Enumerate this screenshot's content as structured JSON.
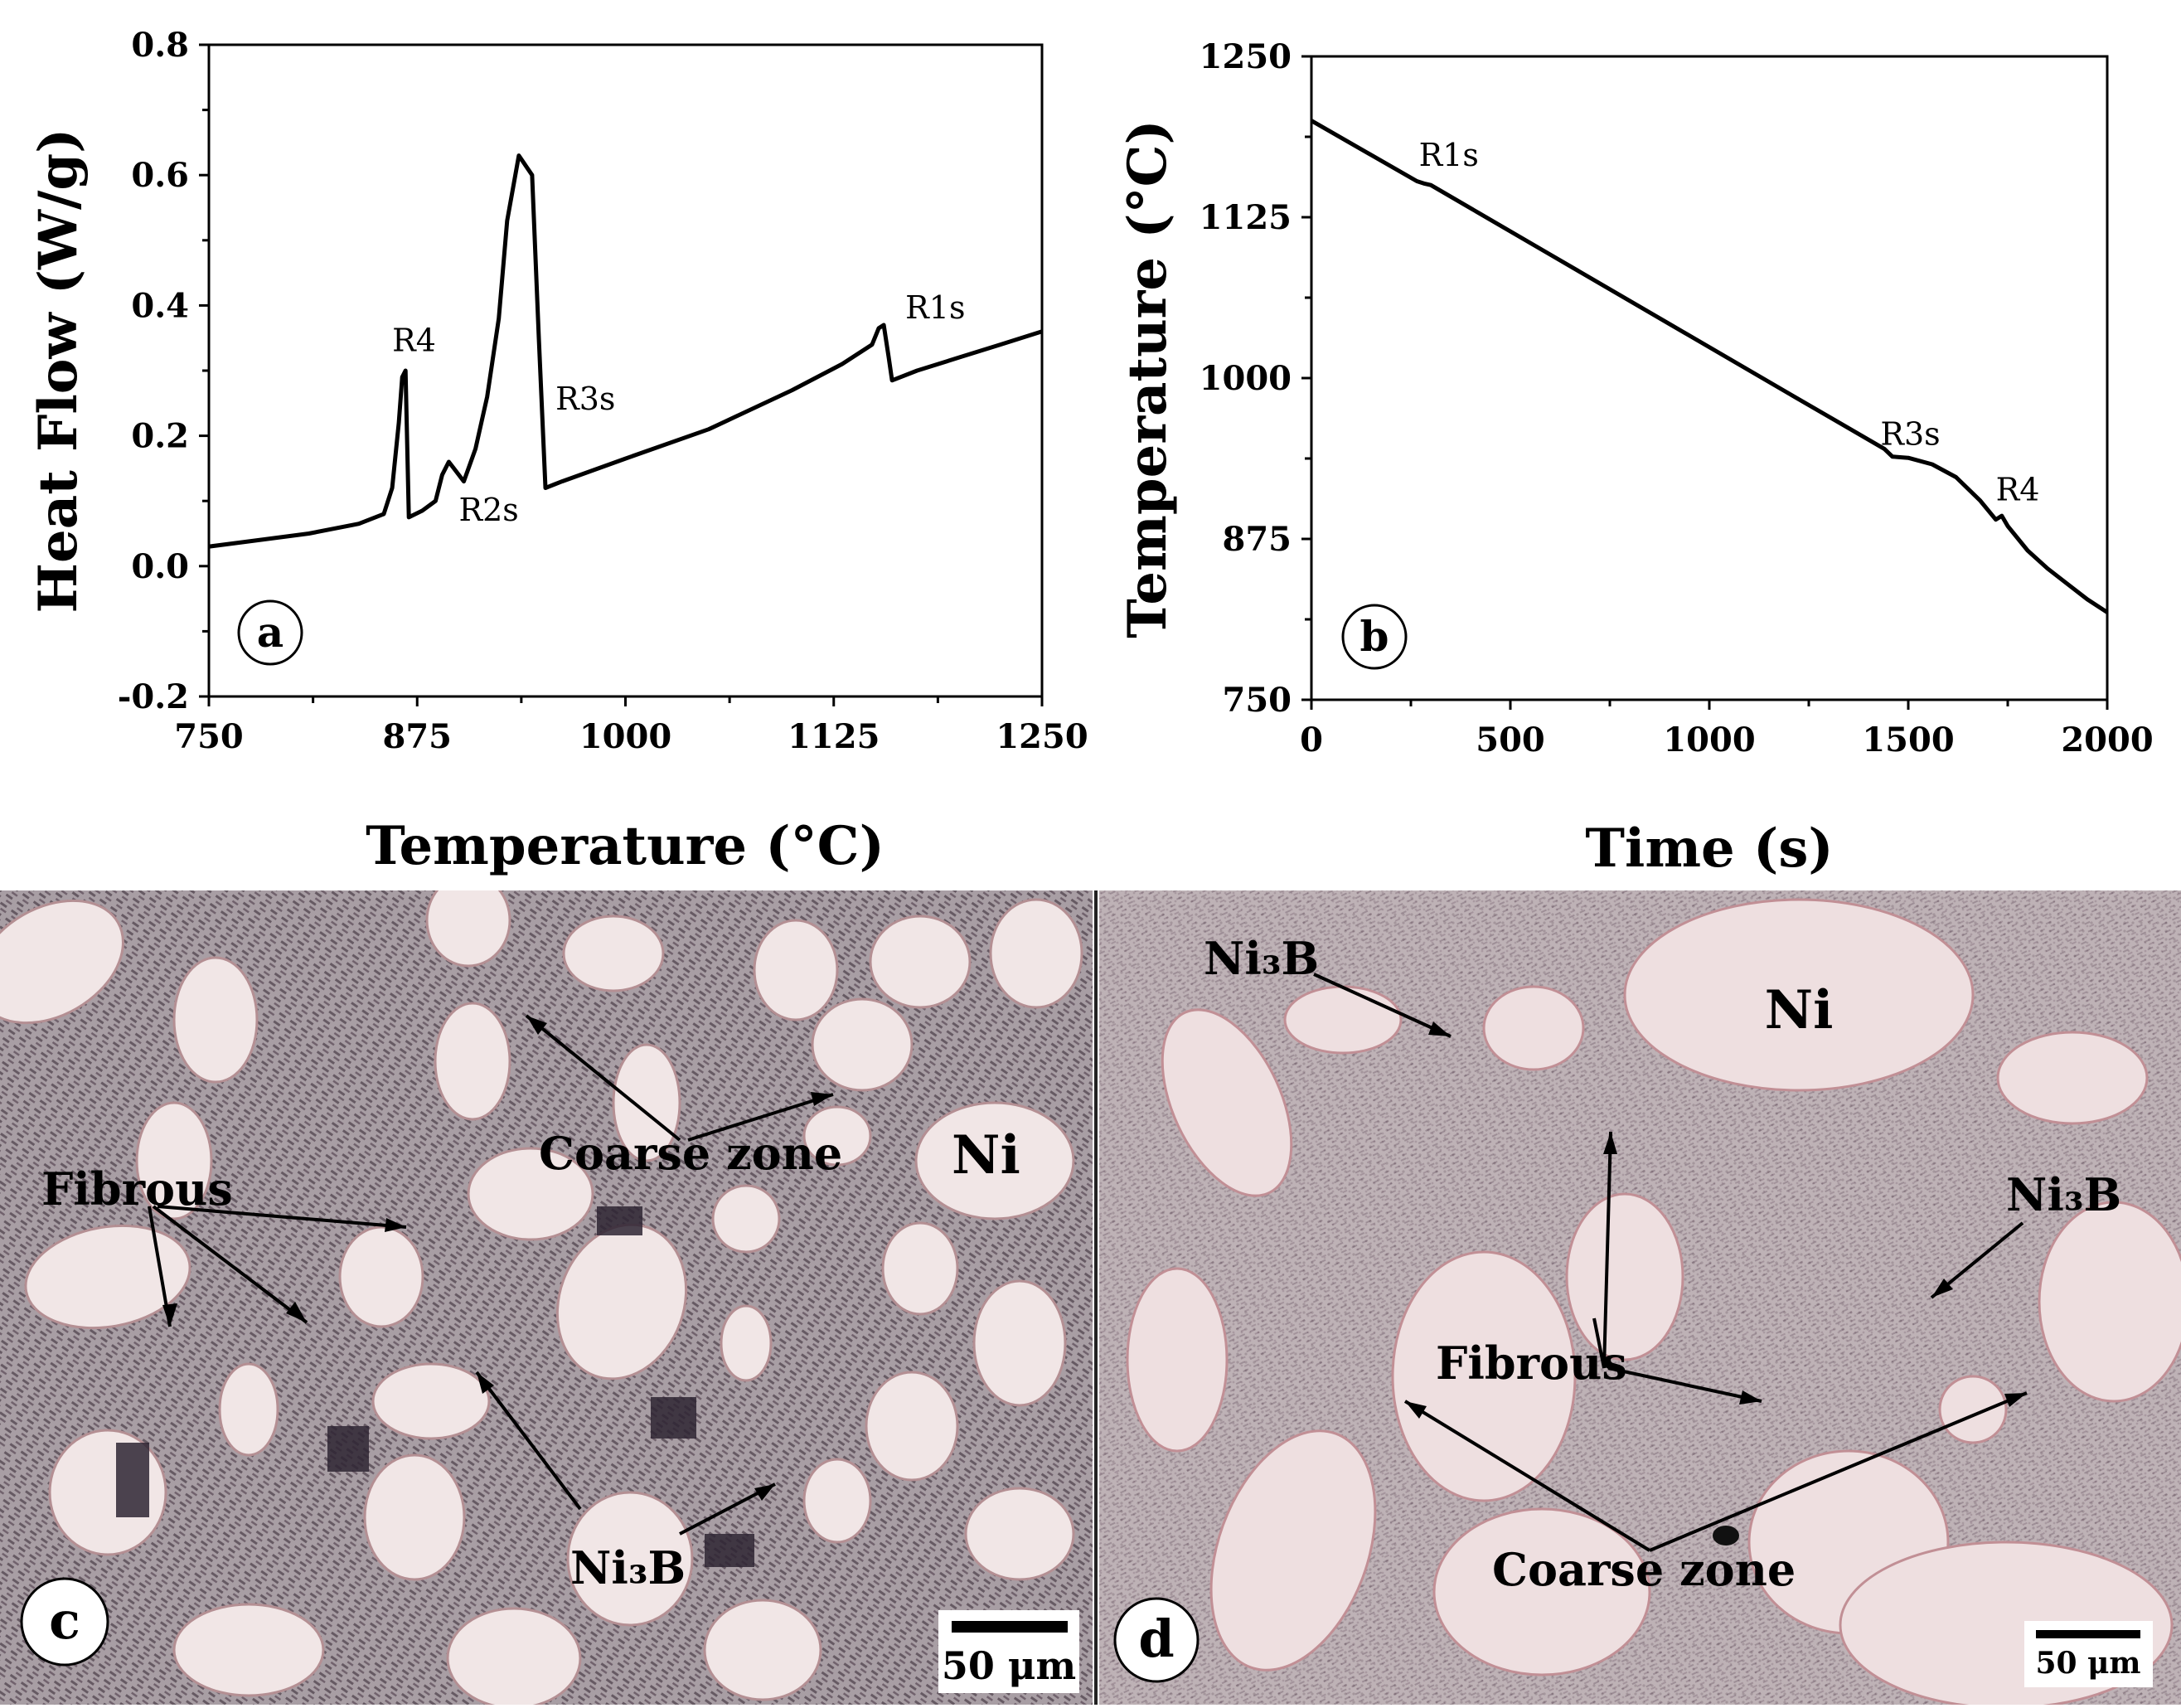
{
  "chart_data": [
    {
      "panel": "a",
      "type": "line",
      "xlabel": "Temperature (°C)",
      "ylabel": "Heat Flow (W/g)",
      "xlim": [
        750,
        1250
      ],
      "ylim": [
        -0.2,
        0.8
      ],
      "xticks": [
        "750",
        "875",
        "1000",
        "1125",
        "1250"
      ],
      "yticks": [
        "-0.2",
        "0.0",
        "0.2",
        "0.4",
        "0.6",
        "0.8"
      ],
      "grid": false,
      "series": [
        {
          "x": [
            750,
            780,
            810,
            840,
            855,
            860,
            864,
            866,
            868,
            870,
            878,
            886,
            890,
            894,
            897,
            903,
            910,
            917,
            924,
            929,
            936,
            944,
            948,
            952,
            954,
            957,
            962,
            1000,
            1050,
            1100,
            1130,
            1148,
            1152,
            1155,
            1158,
            1160,
            1175,
            1200,
            1225,
            1250
          ],
          "y": [
            0.03,
            0.04,
            0.05,
            0.065,
            0.08,
            0.12,
            0.22,
            0.29,
            0.3,
            0.075,
            0.085,
            0.1,
            0.14,
            0.16,
            0.15,
            0.13,
            0.18,
            0.26,
            0.38,
            0.53,
            0.63,
            0.6,
            0.35,
            0.12,
            0.122,
            0.125,
            0.13,
            0.165,
            0.21,
            0.27,
            0.31,
            0.34,
            0.365,
            0.37,
            0.32,
            0.285,
            0.3,
            0.32,
            0.34,
            0.36
          ]
        }
      ],
      "annotations": [
        {
          "text": "R4",
          "x": 860,
          "y": 0.33
        },
        {
          "text": "R2s",
          "x": 900,
          "y": 0.07
        },
        {
          "text": "R3s",
          "x": 958,
          "y": 0.24
        },
        {
          "text": "R1s",
          "x": 1168,
          "y": 0.38
        }
      ],
      "letter": "a"
    },
    {
      "panel": "b",
      "type": "line",
      "xlabel": "Time (s)",
      "ylabel": "Temperature (°C)",
      "xlim": [
        0,
        2000
      ],
      "ylim": [
        750,
        1250
      ],
      "xticks": [
        "0",
        "500",
        "1000",
        "1500",
        "2000"
      ],
      "yticks": [
        "750",
        "875",
        "1000",
        "1125",
        "1250"
      ],
      "grid": false,
      "series": [
        {
          "x": [
            0,
            265,
            285,
            300,
            600,
            900,
            1200,
            1440,
            1460,
            1500,
            1560,
            1620,
            1680,
            1720,
            1735,
            1750,
            1800,
            1850,
            1900,
            1950,
            2000
          ],
          "y": [
            1200,
            1153,
            1151,
            1150,
            1096,
            1042,
            988,
            945,
            939,
            938,
            933,
            923,
            905,
            890,
            893,
            885,
            866,
            852,
            840,
            828,
            818
          ]
        }
      ],
      "annotations": [
        {
          "text": "R1s",
          "x": 270,
          "y": 1165
        },
        {
          "text": "R3s",
          "x": 1430,
          "y": 948
        },
        {
          "text": "R4",
          "x": 1720,
          "y": 905
        }
      ],
      "letter": "b"
    }
  ],
  "micrographs": [
    {
      "panel": "c",
      "letter": "c",
      "labels": [
        "Fibrous",
        "Coarse zone",
        "Ni",
        "Ni₃B"
      ],
      "scale_bar": "50 μm"
    },
    {
      "panel": "d",
      "letter": "d",
      "labels": [
        "Ni₃B",
        "Ni",
        "Ni₃B",
        "Fibrous",
        "Coarse zone"
      ],
      "scale_bar": "50 μm"
    }
  ]
}
